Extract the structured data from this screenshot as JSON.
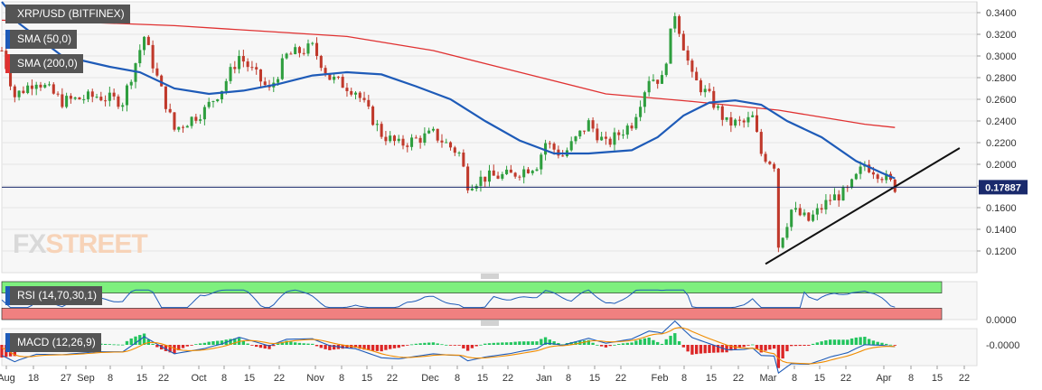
{
  "symbol_label": "XRP/USD (BITFINEX)",
  "indicators": [
    {
      "label": "SMA (50,0)",
      "color": "#1e5bb8"
    },
    {
      "label": "SMA (200,0)",
      "color": "#e03131"
    },
    {
      "label": "RSI (14,70,30,1)",
      "color": "#1e5bb8"
    },
    {
      "label": "MACD (12,26,9)",
      "color": "#1e5bb8"
    }
  ],
  "watermark": {
    "fx": "FX",
    "street": "STREET"
  },
  "last_price_label": "0.17887",
  "chart_data": {
    "type": "candlestick",
    "title": "XRP/USD (BITFINEX)",
    "price_ylim": [
      0.1,
      0.35
    ],
    "price_ticks": [
      "0.3400",
      "0.3200",
      "0.3000",
      "0.2800",
      "0.2600",
      "0.2400",
      "0.2200",
      "0.2000",
      "0.1800",
      "0.1600",
      "0.1400",
      "0.1200"
    ],
    "last_price": 0.17887,
    "x_tick_labels": [
      "Aug",
      "18",
      "27",
      "Sep",
      "8",
      "15",
      "22",
      "Oct",
      "8",
      "15",
      "22",
      "Nov",
      "8",
      "15",
      "22",
      "Dec",
      "8",
      "15",
      "22",
      "Jan",
      "8",
      "15",
      "22",
      "Feb",
      "8",
      "15",
      "22",
      "Mar",
      "8",
      "15",
      "22",
      "Apr",
      "8",
      "15",
      "22"
    ],
    "price_path": [
      {
        "t": 0,
        "p": 0.305
      },
      {
        "t": 3,
        "p": 0.263
      },
      {
        "t": 8,
        "p": 0.278
      },
      {
        "t": 14,
        "p": 0.258
      },
      {
        "t": 22,
        "p": 0.263
      },
      {
        "t": 28,
        "p": 0.258
      },
      {
        "t": 33,
        "p": 0.318
      },
      {
        "t": 36,
        "p": 0.28
      },
      {
        "t": 40,
        "p": 0.232
      },
      {
        "t": 47,
        "p": 0.25
      },
      {
        "t": 51,
        "p": 0.27
      },
      {
        "t": 55,
        "p": 0.3
      },
      {
        "t": 62,
        "p": 0.268
      },
      {
        "t": 66,
        "p": 0.3
      },
      {
        "t": 72,
        "p": 0.308
      },
      {
        "t": 76,
        "p": 0.28
      },
      {
        "t": 82,
        "p": 0.268
      },
      {
        "t": 88,
        "p": 0.228
      },
      {
        "t": 92,
        "p": 0.218
      },
      {
        "t": 100,
        "p": 0.228
      },
      {
        "t": 106,
        "p": 0.21
      },
      {
        "t": 108,
        "p": 0.182
      },
      {
        "t": 112,
        "p": 0.188
      },
      {
        "t": 118,
        "p": 0.19
      },
      {
        "t": 124,
        "p": 0.2
      },
      {
        "t": 126,
        "p": 0.22
      },
      {
        "t": 130,
        "p": 0.208
      },
      {
        "t": 136,
        "p": 0.238
      },
      {
        "t": 140,
        "p": 0.218
      },
      {
        "t": 146,
        "p": 0.238
      },
      {
        "t": 150,
        "p": 0.28
      },
      {
        "t": 153,
        "p": 0.278
      },
      {
        "t": 156,
        "p": 0.34
      },
      {
        "t": 160,
        "p": 0.28
      },
      {
        "t": 164,
        "p": 0.262
      },
      {
        "t": 168,
        "p": 0.238
      },
      {
        "t": 172,
        "p": 0.238
      },
      {
        "t": 174,
        "p": 0.243
      },
      {
        "t": 176,
        "p": 0.21
      },
      {
        "t": 179,
        "p": 0.2
      },
      {
        "t": 180,
        "p": 0.125
      },
      {
        "t": 183,
        "p": 0.158
      },
      {
        "t": 187,
        "p": 0.148
      },
      {
        "t": 192,
        "p": 0.168
      },
      {
        "t": 196,
        "p": 0.175
      },
      {
        "t": 200,
        "p": 0.2
      },
      {
        "t": 204,
        "p": 0.19
      },
      {
        "t": 207,
        "p": 0.179
      }
    ],
    "sma50_path": [
      {
        "t": 0,
        "p": 0.35
      },
      {
        "t": 4,
        "p": 0.33
      },
      {
        "t": 14,
        "p": 0.3
      },
      {
        "t": 25,
        "p": 0.29
      },
      {
        "t": 32,
        "p": 0.285
      },
      {
        "t": 40,
        "p": 0.27
      },
      {
        "t": 48,
        "p": 0.265
      },
      {
        "t": 56,
        "p": 0.268
      },
      {
        "t": 64,
        "p": 0.274
      },
      {
        "t": 72,
        "p": 0.282
      },
      {
        "t": 80,
        "p": 0.285
      },
      {
        "t": 88,
        "p": 0.283
      },
      {
        "t": 96,
        "p": 0.272
      },
      {
        "t": 104,
        "p": 0.26
      },
      {
        "t": 112,
        "p": 0.24
      },
      {
        "t": 120,
        "p": 0.222
      },
      {
        "t": 128,
        "p": 0.21
      },
      {
        "t": 136,
        "p": 0.21
      },
      {
        "t": 146,
        "p": 0.213
      },
      {
        "t": 152,
        "p": 0.225
      },
      {
        "t": 158,
        "p": 0.245
      },
      {
        "t": 164,
        "p": 0.257
      },
      {
        "t": 170,
        "p": 0.259
      },
      {
        "t": 176,
        "p": 0.255
      },
      {
        "t": 182,
        "p": 0.24
      },
      {
        "t": 190,
        "p": 0.225
      },
      {
        "t": 198,
        "p": 0.203
      },
      {
        "t": 204,
        "p": 0.192
      },
      {
        "t": 207,
        "p": 0.187
      }
    ],
    "sma200_path": [
      {
        "t": 0,
        "p": 0.333
      },
      {
        "t": 20,
        "p": 0.331
      },
      {
        "t": 40,
        "p": 0.328
      },
      {
        "t": 60,
        "p": 0.323
      },
      {
        "t": 80,
        "p": 0.318
      },
      {
        "t": 100,
        "p": 0.305
      },
      {
        "t": 120,
        "p": 0.285
      },
      {
        "t": 140,
        "p": 0.265
      },
      {
        "t": 160,
        "p": 0.258
      },
      {
        "t": 180,
        "p": 0.25
      },
      {
        "t": 200,
        "p": 0.237
      },
      {
        "t": 207,
        "p": 0.234
      }
    ],
    "trendline": [
      {
        "t": 177,
        "p": 0.108
      },
      {
        "t": 222,
        "p": 0.215
      }
    ],
    "rsi_value_range": [
      0,
      100
    ],
    "rsi_zone_bands": [
      70,
      30
    ],
    "rsi_axis_label": "0.0000",
    "macd_axis_label": "-0.0000"
  }
}
